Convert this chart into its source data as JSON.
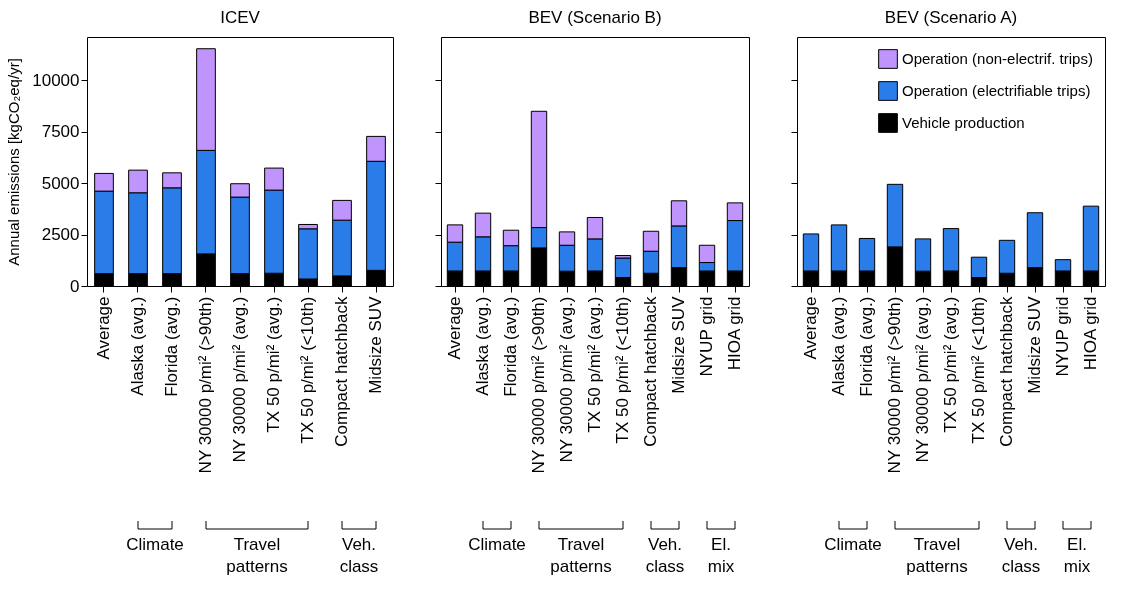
{
  "chart_data": [
    {
      "type": "bar",
      "stacked": true,
      "title": "ICEV",
      "ylabel": "Annual emissions [kgCO₂eq/yr]",
      "categories": [
        "Average",
        "Alaska (avg.)",
        "Florida (avg.)",
        "NY 30000 p/mi² (>90th)",
        "NY 30000 p/mi² (avg.)",
        "TX 50 p/mi² (avg.)",
        "TX 50 p/mi² (<10th)",
        "Compact hatchback",
        "Midsize SUV"
      ],
      "series": [
        {
          "color": "#000000",
          "values": [
            600,
            600,
            600,
            1560,
            600,
            620,
            340,
            490,
            760
          ]
        },
        {
          "color": "#2a7de9",
          "values": [
            4010,
            3930,
            4170,
            5030,
            3720,
            4040,
            2440,
            2710,
            5300
          ]
        },
        {
          "color": "#bf94fc",
          "values": [
            860,
            1100,
            730,
            4940,
            650,
            1070,
            210,
            960,
            1210
          ]
        }
      ],
      "ylim": [
        0,
        12100
      ],
      "yticks": [
        0,
        2500,
        5000,
        7500,
        10000
      ],
      "annotations": [
        "Climate",
        "Travel patterns",
        "Veh. class"
      ]
    },
    {
      "type": "bar",
      "stacked": true,
      "title": "BEV (Scenario B)",
      "tick_labels": "x",
      "categories": [
        "Average",
        "Alaska (avg.)",
        "Florida (avg.)",
        "NY 30000 p/mi² (>90th)",
        "NY 30000 p/mi² (avg.)",
        "TX 50 p/mi² (avg.)",
        "TX 50 p/mi² (<10th)",
        "Compact hatchback",
        "Midsize SUV",
        "NYUP grid",
        "HIOA grid"
      ],
      "series": [
        {
          "color": "#000000",
          "values": [
            730,
            730,
            730,
            1850,
            720,
            730,
            410,
            620,
            890,
            730,
            730
          ]
        },
        {
          "color": "#2a7de9",
          "values": [
            1400,
            1660,
            1230,
            990,
            1260,
            1560,
            950,
            1070,
            2030,
            410,
            2450
          ]
        },
        {
          "color": "#bf94fc",
          "values": [
            840,
            1150,
            750,
            5650,
            650,
            1040,
            120,
            970,
            1220,
            840,
            860
          ]
        }
      ],
      "ylim": [
        0,
        12100
      ],
      "yticks": [
        0,
        2500,
        5000,
        7500,
        10000
      ],
      "annotations": [
        "Climate",
        "Travel patterns",
        "Veh. class",
        "El. mix"
      ]
    },
    {
      "type": "bar",
      "stacked": true,
      "title": "BEV (Scenario A)",
      "tick_labels": "x",
      "legend": "top right",
      "categories": [
        "Average",
        "Alaska (avg.)",
        "Florida (avg.)",
        "NY 30000 p/mi² (>90th)",
        "NY 30000 p/mi² (avg.)",
        "TX 50 p/mi² (avg.)",
        "TX 50 p/mi² (<10th)",
        "Compact hatchback",
        "Midsize SUV",
        "NYUP grid",
        "HIOA grid"
      ],
      "series": [
        {
          "name": "Vehicle production",
          "color": "#000000",
          "values": [
            730,
            730,
            730,
            1900,
            720,
            730,
            410,
            620,
            890,
            730,
            730
          ]
        },
        {
          "name": "Operation (electrifiable trips)",
          "color": "#2a7de9",
          "values": [
            1800,
            2240,
            1580,
            3040,
            1570,
            2060,
            990,
            1600,
            2670,
            550,
            3150
          ]
        },
        {
          "name": "Operation (non-electrif. trips)",
          "color": "#bf94fc",
          "values": [
            null,
            null,
            null,
            null,
            null,
            null,
            null,
            null,
            null,
            null,
            null
          ]
        }
      ],
      "ylim": [
        0,
        12100
      ],
      "yticks": [
        0,
        2500,
        5000,
        7500,
        10000
      ],
      "annotations": [
        "Climate",
        "Travel patterns",
        "Veh. class",
        "El. mix"
      ]
    }
  ]
}
